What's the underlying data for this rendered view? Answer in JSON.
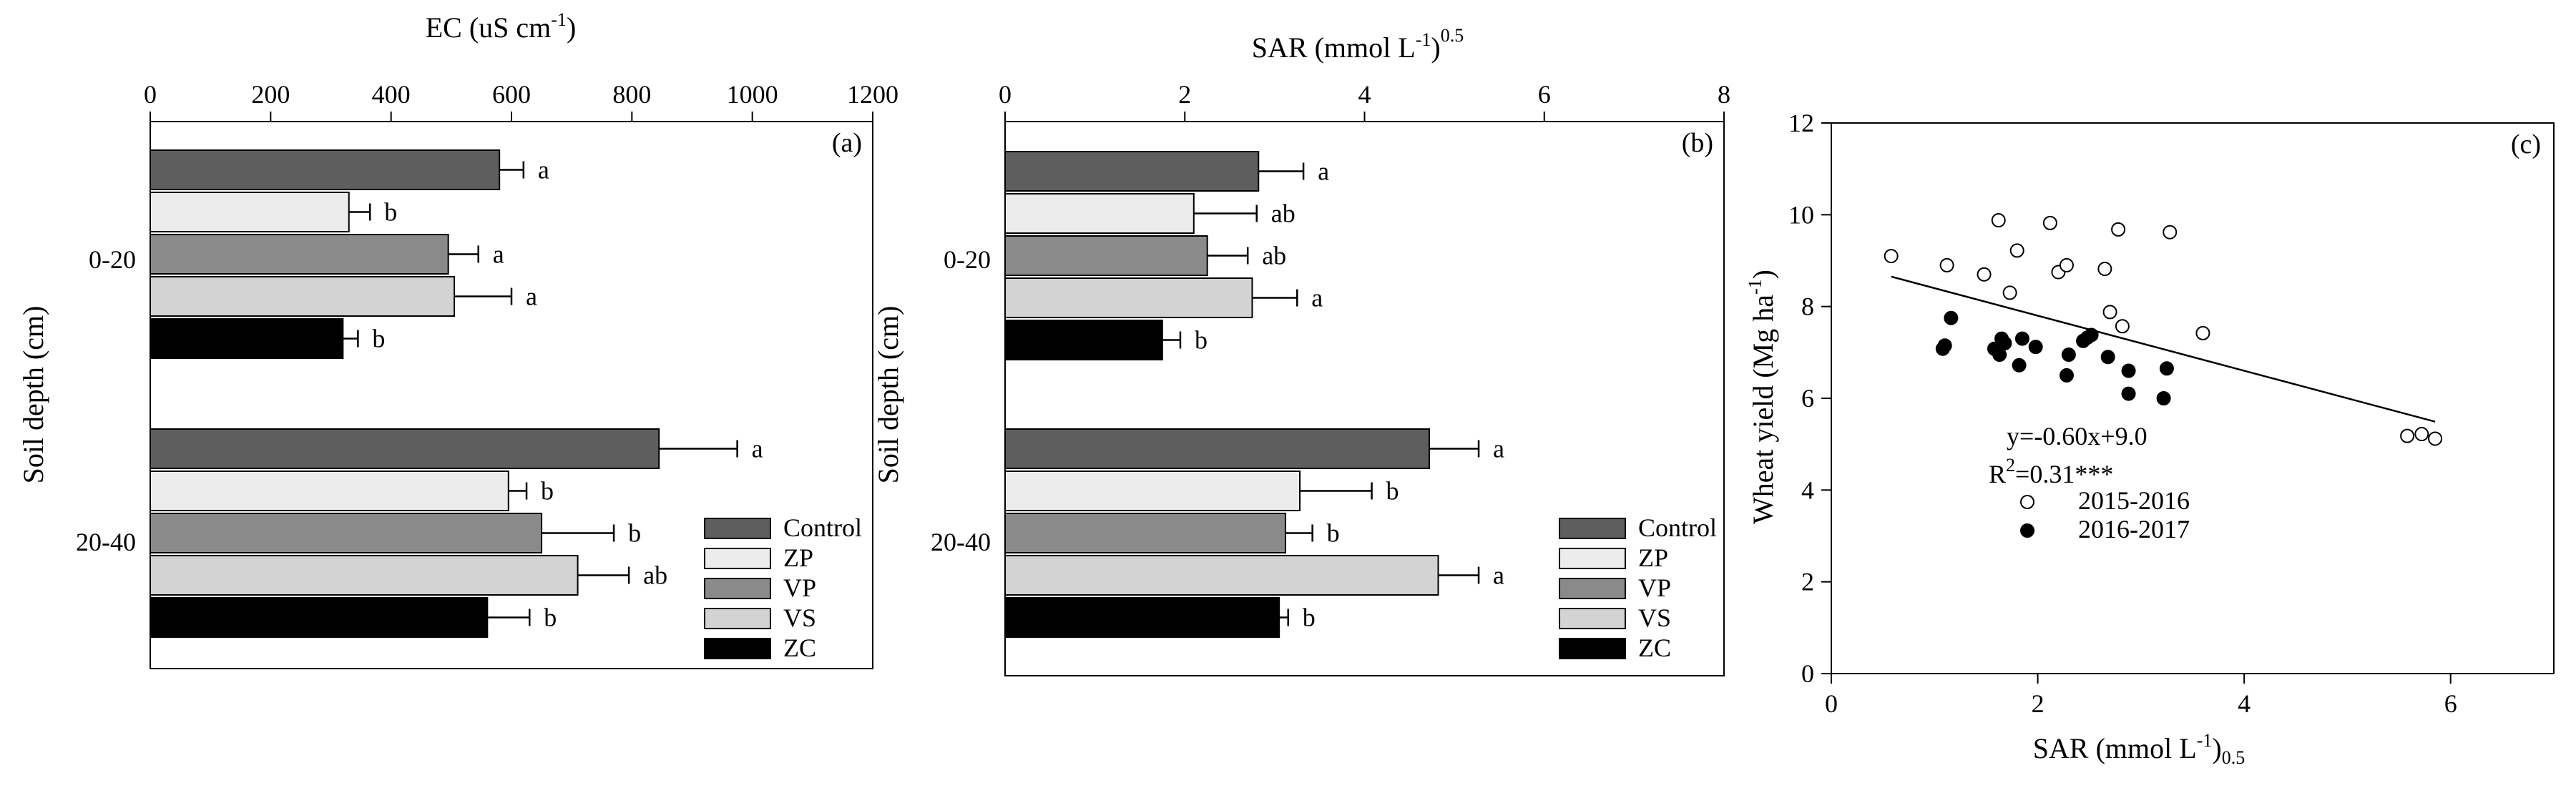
{
  "colors": {
    "Control": "#5e5e5e",
    "ZP": "#ececec",
    "VP": "#8a8a8a",
    "VS": "#d3d3d3",
    "ZC": "#000000"
  },
  "chart_data": [
    {
      "type": "bar",
      "orientation": "horizontal",
      "panel_label": "(a)",
      "xlabel_main": "EC (uS cm",
      "xlabel_sup": "-1",
      "xlabel_tail": ")",
      "ylabel": "Soil depth (cm)",
      "xlim": [
        0,
        1200
      ],
      "xticks": [
        "0",
        "200",
        "400",
        "600",
        "800",
        "1000",
        "1200"
      ],
      "categories": [
        "0-20",
        "20-40"
      ],
      "legend": [
        "Control",
        "ZP",
        "VP",
        "VS",
        "ZC"
      ],
      "legend_position": "bottom-right",
      "series": [
        {
          "name": "Control",
          "values": [
            580,
            845
          ],
          "errors": [
            40,
            130
          ],
          "letters": [
            "a",
            "a"
          ]
        },
        {
          "name": "ZP",
          "values": [
            330,
            595
          ],
          "errors": [
            35,
            30
          ],
          "letters": [
            "b",
            "b"
          ]
        },
        {
          "name": "VP",
          "values": [
            495,
            650
          ],
          "errors": [
            50,
            120
          ],
          "letters": [
            "a",
            "b"
          ]
        },
        {
          "name": "VS",
          "values": [
            505,
            710
          ],
          "errors": [
            95,
            85
          ],
          "letters": [
            "a",
            "ab"
          ]
        },
        {
          "name": "ZC",
          "values": [
            320,
            560
          ],
          "errors": [
            25,
            70
          ],
          "letters": [
            "b",
            "b"
          ]
        }
      ]
    },
    {
      "type": "bar",
      "orientation": "horizontal",
      "panel_label": "(b)",
      "xlabel_main": "SAR (mmol L",
      "xlabel_sup": "-1",
      "xlabel_tail": ")",
      "xlabel_sup2": "0.5",
      "ylabel": "Soil depth (cm)",
      "xlim": [
        0,
        8
      ],
      "xticks": [
        "0",
        "2",
        "4",
        "6",
        "8"
      ],
      "categories": [
        "0-20",
        "20-40"
      ],
      "legend": [
        "Control",
        "ZP",
        "VP",
        "VS",
        "ZC"
      ],
      "legend_position": "bottom-right",
      "series": [
        {
          "name": "Control",
          "values": [
            2.82,
            4.72
          ],
          "errors": [
            0.5,
            0.55
          ],
          "letters": [
            "a",
            "a"
          ]
        },
        {
          "name": "ZP",
          "values": [
            2.1,
            3.28
          ],
          "errors": [
            0.7,
            0.8
          ],
          "letters": [
            "ab",
            "b"
          ]
        },
        {
          "name": "VP",
          "values": [
            2.25,
            3.12
          ],
          "errors": [
            0.45,
            0.3
          ],
          "letters": [
            "ab",
            "b"
          ]
        },
        {
          "name": "VS",
          "values": [
            2.75,
            4.82
          ],
          "errors": [
            0.5,
            0.45
          ],
          "letters": [
            "a",
            "a"
          ]
        },
        {
          "name": "ZC",
          "values": [
            1.75,
            3.05
          ],
          "errors": [
            0.2,
            0.1
          ],
          "letters": [
            "b",
            "b"
          ]
        }
      ]
    },
    {
      "type": "scatter",
      "panel_label": "(c)",
      "xlabel_main": "SAR (mmol L",
      "xlabel_sup": "-1",
      "xlabel_tail": ")",
      "xlabel_sup2": "0.5",
      "ylabel_main": "Wheat yield (Mg ha",
      "ylabel_sup": "-1",
      "ylabel_tail": ")",
      "xlim": [
        0,
        7
      ],
      "ylim": [
        0,
        12
      ],
      "xticks": [
        "0",
        "2",
        "4",
        "6"
      ],
      "yticks": [
        "0",
        "2",
        "4",
        "6",
        "8",
        "10",
        "12"
      ],
      "equation": "y=-0.60x+9.0",
      "r2_main": "R",
      "r2_sup": "2",
      "r2_tail": "=0.31***",
      "fit": {
        "slope": -0.6,
        "intercept": 9.0,
        "x_range": [
          0.58,
          5.85
        ]
      },
      "series": [
        {
          "name": "2015-2016",
          "marker": "open",
          "points": [
            [
              0.58,
              9.1
            ],
            [
              1.12,
              8.9
            ],
            [
              1.48,
              8.7
            ],
            [
              1.62,
              9.88
            ],
            [
              1.73,
              8.3
            ],
            [
              1.8,
              9.22
            ],
            [
              2.12,
              9.82
            ],
            [
              2.2,
              8.75
            ],
            [
              2.28,
              8.9
            ],
            [
              2.65,
              8.82
            ],
            [
              2.7,
              7.88
            ],
            [
              2.78,
              9.68
            ],
            [
              2.82,
              7.57
            ],
            [
              3.28,
              9.62
            ],
            [
              3.6,
              7.42
            ],
            [
              5.58,
              5.18
            ],
            [
              5.72,
              5.22
            ],
            [
              5.85,
              5.12
            ]
          ]
        },
        {
          "name": "2016-2017",
          "marker": "filled",
          "points": [
            [
              1.08,
              7.08
            ],
            [
              1.1,
              7.15
            ],
            [
              1.16,
              7.75
            ],
            [
              1.58,
              7.08
            ],
            [
              1.63,
              6.95
            ],
            [
              1.65,
              7.3
            ],
            [
              1.68,
              7.2
            ],
            [
              1.82,
              6.72
            ],
            [
              1.85,
              7.3
            ],
            [
              1.98,
              7.12
            ],
            [
              2.28,
              6.5
            ],
            [
              2.3,
              6.95
            ],
            [
              2.44,
              7.25
            ],
            [
              2.48,
              7.32
            ],
            [
              2.52,
              7.38
            ],
            [
              2.68,
              6.9
            ],
            [
              2.88,
              6.6
            ],
            [
              2.88,
              6.1
            ],
            [
              3.22,
              6.0
            ],
            [
              3.25,
              6.65
            ]
          ]
        }
      ]
    }
  ]
}
